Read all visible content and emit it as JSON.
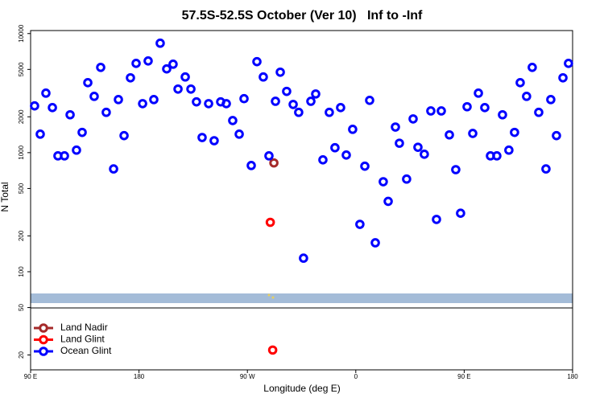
{
  "chart_data": {
    "type": "scatter",
    "title": "57.5S-52.5S October (Ver 10)   Inf to -Inf",
    "xlabel": "Longitude (deg E)",
    "ylabel": "N Total",
    "log_y": true,
    "xlim": [
      90,
      540
    ],
    "xticks": [
      {
        "value": 90,
        "label": "90 E"
      },
      180,
      {
        "value": 270,
        "label": "90 W"
      },
      {
        "value": 360,
        "label": "0"
      },
      {
        "value": 450,
        "label": "90 E"
      },
      {
        "value": 540,
        "label": "180"
      }
    ],
    "ylim": [
      15,
      10600
    ],
    "yticks": [
      20,
      50,
      100,
      200,
      500,
      1000,
      2000,
      5000,
      10000
    ],
    "legend": "lower left",
    "series": [
      {
        "name": "Land Nadir",
        "color": "#a52a2a",
        "x": [
          292
        ],
        "values": [
          820
        ]
      },
      {
        "name": "Land Glint",
        "color": "#ff0000",
        "x": [
          289,
          291
        ],
        "values": [
          260,
          22
        ]
      },
      {
        "name": "Ocean Glint",
        "color": "#0000ff",
        "x": [
          93.3,
          98.0,
          102.7,
          108.1,
          112.7,
          118.1,
          122.8,
          128.1,
          132.8,
          137.5,
          142.8,
          148.2,
          152.8,
          158.9,
          162.9,
          167.6,
          172.9,
          177.6,
          183.0,
          187.6,
          192.3,
          197.6,
          203.0,
          208.3,
          212.4,
          218.4,
          223.1,
          227.7,
          232.4,
          237.8,
          242.4,
          247.8,
          252.5,
          257.8,
          263.2,
          267.2,
          273.2,
          277.9,
          283.2,
          287.9,
          293.3,
          297.3,
          302.6,
          308.0,
          312.6,
          316.6,
          322.7,
          326.7,
          332.7,
          338.0,
          342.7,
          347.4,
          352.1,
          357.4,
          363.4,
          367.5,
          371.5,
          376.2,
          382.8,
          386.9,
          392.9,
          396.2,
          402.2,
          407.6,
          411.6,
          416.9,
          422.3,
          427.0,
          431.0,
          437.7,
          443.0,
          447.0,
          452.4,
          457.1,
          461.8,
          467.1,
          471.8,
          477.1,
          481.8,
          487.1,
          491.8,
          496.5,
          501.8,
          506.5,
          511.9,
          517.9,
          521.9,
          526.6,
          532.0,
          536.6
        ],
        "values": [
          2470,
          1430,
          3160,
          2390,
          940,
          940,
          2080,
          1050,
          1480,
          3870,
          2970,
          5200,
          2180,
          730,
          2790,
          1390,
          4250,
          5620,
          2580,
          5890,
          2790,
          8300,
          5050,
          5530,
          3420,
          4320,
          3420,
          2670,
          1340,
          2580,
          1260,
          2670,
          2580,
          1860,
          1430,
          2840,
          780,
          5810,
          4320,
          940,
          2700,
          4740,
          3270,
          2540,
          2180,
          130,
          2700,
          3110,
          870,
          2180,
          1100,
          2390,
          955,
          1570,
          250,
          770,
          2750,
          175,
          570,
          390,
          1640,
          1200,
          600,
          1920,
          1110,
          970,
          2240,
          275,
          2240,
          1410,
          720,
          310,
          2430,
          1450,
          3160,
          2390,
          940,
          940,
          2080,
          1050,
          1480,
          3870,
          2970,
          5200,
          2180,
          730,
          2790,
          1390,
          4250,
          5620
        ]
      }
    ]
  }
}
